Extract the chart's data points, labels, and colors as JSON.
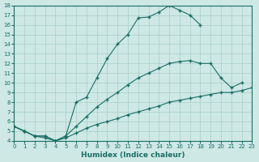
{
  "xlabel": "Humidex (Indice chaleur)",
  "xlim": [
    0,
    23
  ],
  "ylim": [
    4,
    18
  ],
  "xticks": [
    0,
    1,
    2,
    3,
    4,
    5,
    6,
    7,
    8,
    9,
    10,
    11,
    12,
    13,
    14,
    15,
    16,
    17,
    18,
    19,
    20,
    21,
    22,
    23
  ],
  "yticks": [
    4,
    5,
    6,
    7,
    8,
    9,
    10,
    11,
    12,
    13,
    14,
    15,
    16,
    17,
    18
  ],
  "bg_color": "#cde8e5",
  "line_color": "#1a6e64",
  "grid_color": "#a8cdc8",
  "line1_x": [
    0,
    1,
    2,
    3,
    4,
    5,
    6,
    7,
    8,
    9,
    10,
    11,
    12,
    13,
    14,
    15,
    16,
    17,
    18
  ],
  "line1_y": [
    5.5,
    5.0,
    4.5,
    4.5,
    4.0,
    4.5,
    8.0,
    8.5,
    10.5,
    12.5,
    14.0,
    15.0,
    16.7,
    16.8,
    17.3,
    18.0,
    17.5,
    17.0,
    16.0
  ],
  "line2_x": [
    0,
    1,
    2,
    3,
    4,
    5,
    6,
    7,
    8,
    9,
    10,
    11,
    12,
    13,
    14,
    15,
    16,
    17,
    18,
    19,
    20,
    21,
    22
  ],
  "line2_y": [
    5.5,
    5.0,
    4.5,
    4.5,
    4.0,
    4.5,
    5.5,
    6.5,
    7.5,
    8.3,
    9.0,
    9.8,
    10.5,
    11.0,
    11.5,
    12.0,
    12.2,
    12.3,
    12.0,
    12.0,
    10.5,
    9.5,
    10.0
  ],
  "line3_x": [
    0,
    1,
    2,
    3,
    4,
    5,
    6,
    7,
    8,
    9,
    10,
    11,
    12,
    13,
    14,
    15,
    16,
    17,
    18,
    19,
    20,
    21,
    22,
    23
  ],
  "line3_y": [
    5.5,
    5.0,
    4.5,
    4.3,
    4.0,
    4.3,
    4.8,
    5.3,
    5.7,
    6.0,
    6.3,
    6.7,
    7.0,
    7.3,
    7.6,
    8.0,
    8.2,
    8.4,
    8.6,
    8.8,
    9.0,
    9.0,
    9.2,
    9.5
  ]
}
